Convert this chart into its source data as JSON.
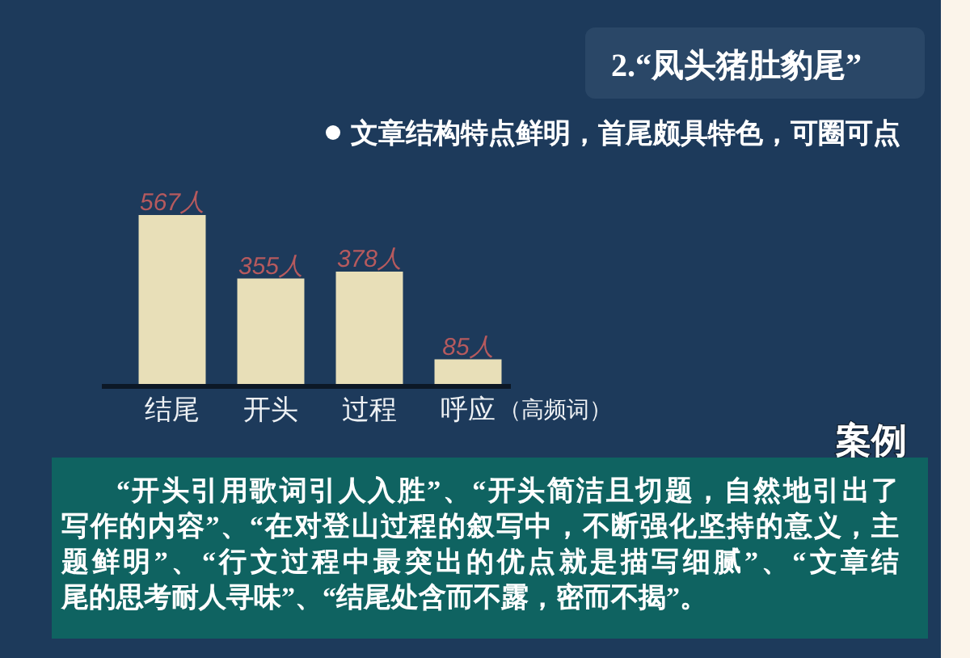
{
  "chart_data": {
    "type": "bar",
    "title": "2.“凤头猪肚豹尾”",
    "subtitle": "文章结构特点鲜明，首尾颇具特色，可圈可点",
    "categories": [
      "结尾",
      "开头",
      "过程",
      "呼应"
    ],
    "values": [
      567,
      355,
      378,
      85
    ],
    "color": "#e8dfb8",
    "value_labels": [
      "567人",
      "355人",
      "378人",
      "85人"
    ],
    "annotations": [
      "（高频词）",
      "案例",
      "“开头引用歌词引人入胜”、“开头简洁且切题，自然地引出了写作的内容”、“在对登山过程的叙写中，不断强化坚持的意义，主题鲜明”、“行文过程中最突出的优点就是描写细腻”、“文章结尾的思考耐人寻味”、“结尾处含而不露，密而不揭”。"
    ]
  }
}
